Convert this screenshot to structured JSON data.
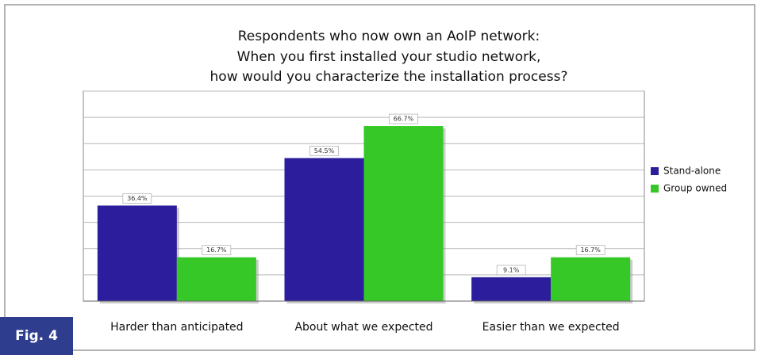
{
  "chart_data": {
    "type": "bar",
    "title": [
      "Respondents who now own an AoIP network:",
      "When you first installed your studio network,",
      "how would you characterize the installation process?"
    ],
    "figure_label": "Fig. 4",
    "categories": [
      "Harder than anticipated",
      "About what we expected",
      "Easier than we expected"
    ],
    "series": [
      {
        "name": "Stand-alone",
        "color": "#2b1d9c",
        "values": [
          36.4,
          54.5,
          9.1
        ],
        "value_labels": [
          "36.4%",
          "54.5%",
          "9.1%"
        ]
      },
      {
        "name": "Group owned",
        "color": "#35c826",
        "values": [
          16.7,
          66.7,
          16.7
        ],
        "value_labels": [
          "16.7%",
          "66.7%",
          "16.7%"
        ]
      }
    ],
    "ylim": [
      0,
      80
    ],
    "yticks": [
      0,
      10,
      20,
      30,
      40,
      50,
      60,
      70,
      80
    ],
    "grid": true,
    "legend": "right"
  }
}
